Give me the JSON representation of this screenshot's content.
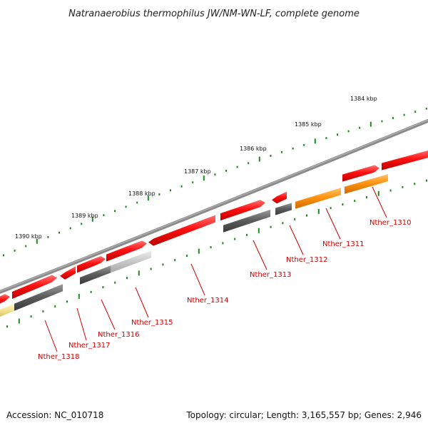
{
  "title": "Natranaerobius thermophilus JW/NM-WN-LF, complete genome",
  "footer": {
    "accession": "Accession: NC_010718",
    "summary": "Topology: circular; Length: 3,165,557 bp; Genes: 2,946"
  },
  "colors": {
    "backbone": "#7a7a7a",
    "red": "#ff1a1a",
    "dark_gray": "#5a5a5a",
    "light_gray": "#c4c4c4",
    "orange": "#ff9a1a",
    "yellow": "#f0e08a",
    "tick": "#1a8a1a",
    "label": "#cc0000"
  },
  "ruler": [
    {
      "label": "1384 kbp",
      "pos_kbp": 1384
    },
    {
      "label": "1385 kbp",
      "pos_kbp": 1385
    },
    {
      "label": "1386 kbp",
      "pos_kbp": 1386
    },
    {
      "label": "1387 kbp",
      "pos_kbp": 1387
    },
    {
      "label": "1388 kbp",
      "pos_kbp": 1388
    },
    {
      "label": "1389 kbp",
      "pos_kbp": 1389
    },
    {
      "label": "1390 kbp",
      "pos_kbp": 1390
    }
  ],
  "genes": [
    {
      "label": "Nther_1310",
      "track": "outer",
      "color": "red",
      "strand": "forward",
      "feature": "gene"
    },
    {
      "label": "Nther_1310",
      "track": "inner",
      "color": "orange",
      "feature": "cds"
    },
    {
      "label": "Nther_1311",
      "track": "outer",
      "color": "red",
      "strand": "forward",
      "feature": "gene"
    },
    {
      "label": "Nther_1311",
      "track": "inner",
      "color": "orange",
      "feature": "cds"
    },
    {
      "label": "Nther_1312",
      "track": "outer",
      "color": "red",
      "strand": "reverse",
      "feature": "gene"
    },
    {
      "label": "Nther_1312",
      "track": "inner",
      "color": "dark_gray",
      "feature": "cds"
    },
    {
      "label": "Nther_1313",
      "track": "outer",
      "color": "red",
      "strand": "forward",
      "feature": "gene"
    },
    {
      "label": "Nther_1313",
      "track": "inner",
      "color": "dark_gray",
      "feature": "cds"
    },
    {
      "label": "Nther_1314",
      "track": "outer",
      "color": "red",
      "strand": "reverse",
      "feature": "gene"
    },
    {
      "label": "Nther_1315",
      "track": "outer",
      "color": "red",
      "strand": "forward",
      "feature": "gene"
    },
    {
      "label": "Nther_1315",
      "track": "inner",
      "color": "light_gray",
      "feature": "cds"
    },
    {
      "label": "Nther_1316",
      "track": "outer",
      "color": "red",
      "strand": "forward",
      "feature": "gene"
    },
    {
      "label": "Nther_1316",
      "track": "inner",
      "color": "dark_gray",
      "feature": "cds"
    },
    {
      "label": "Nther_1317",
      "track": "outer",
      "color": "red",
      "strand": "reverse",
      "feature": "gene"
    },
    {
      "label": "Nther_1318",
      "track": "outer",
      "color": "red",
      "strand": "forward",
      "feature": "gene"
    },
    {
      "label": "Nther_1318",
      "track": "inner",
      "color": "dark_gray",
      "feature": "cds"
    },
    {
      "label": "",
      "track": "outer",
      "color": "red",
      "strand": "forward",
      "feature": "gene"
    },
    {
      "label": "",
      "track": "inner",
      "color": "yellow",
      "feature": "cds"
    }
  ],
  "labels": [
    "Nther_1310",
    "Nther_1311",
    "Nther_1312",
    "Nther_1313",
    "Nther_1314",
    "Nther_1315",
    "Nther_1316",
    "Nther_1317",
    "Nther_1318"
  ]
}
